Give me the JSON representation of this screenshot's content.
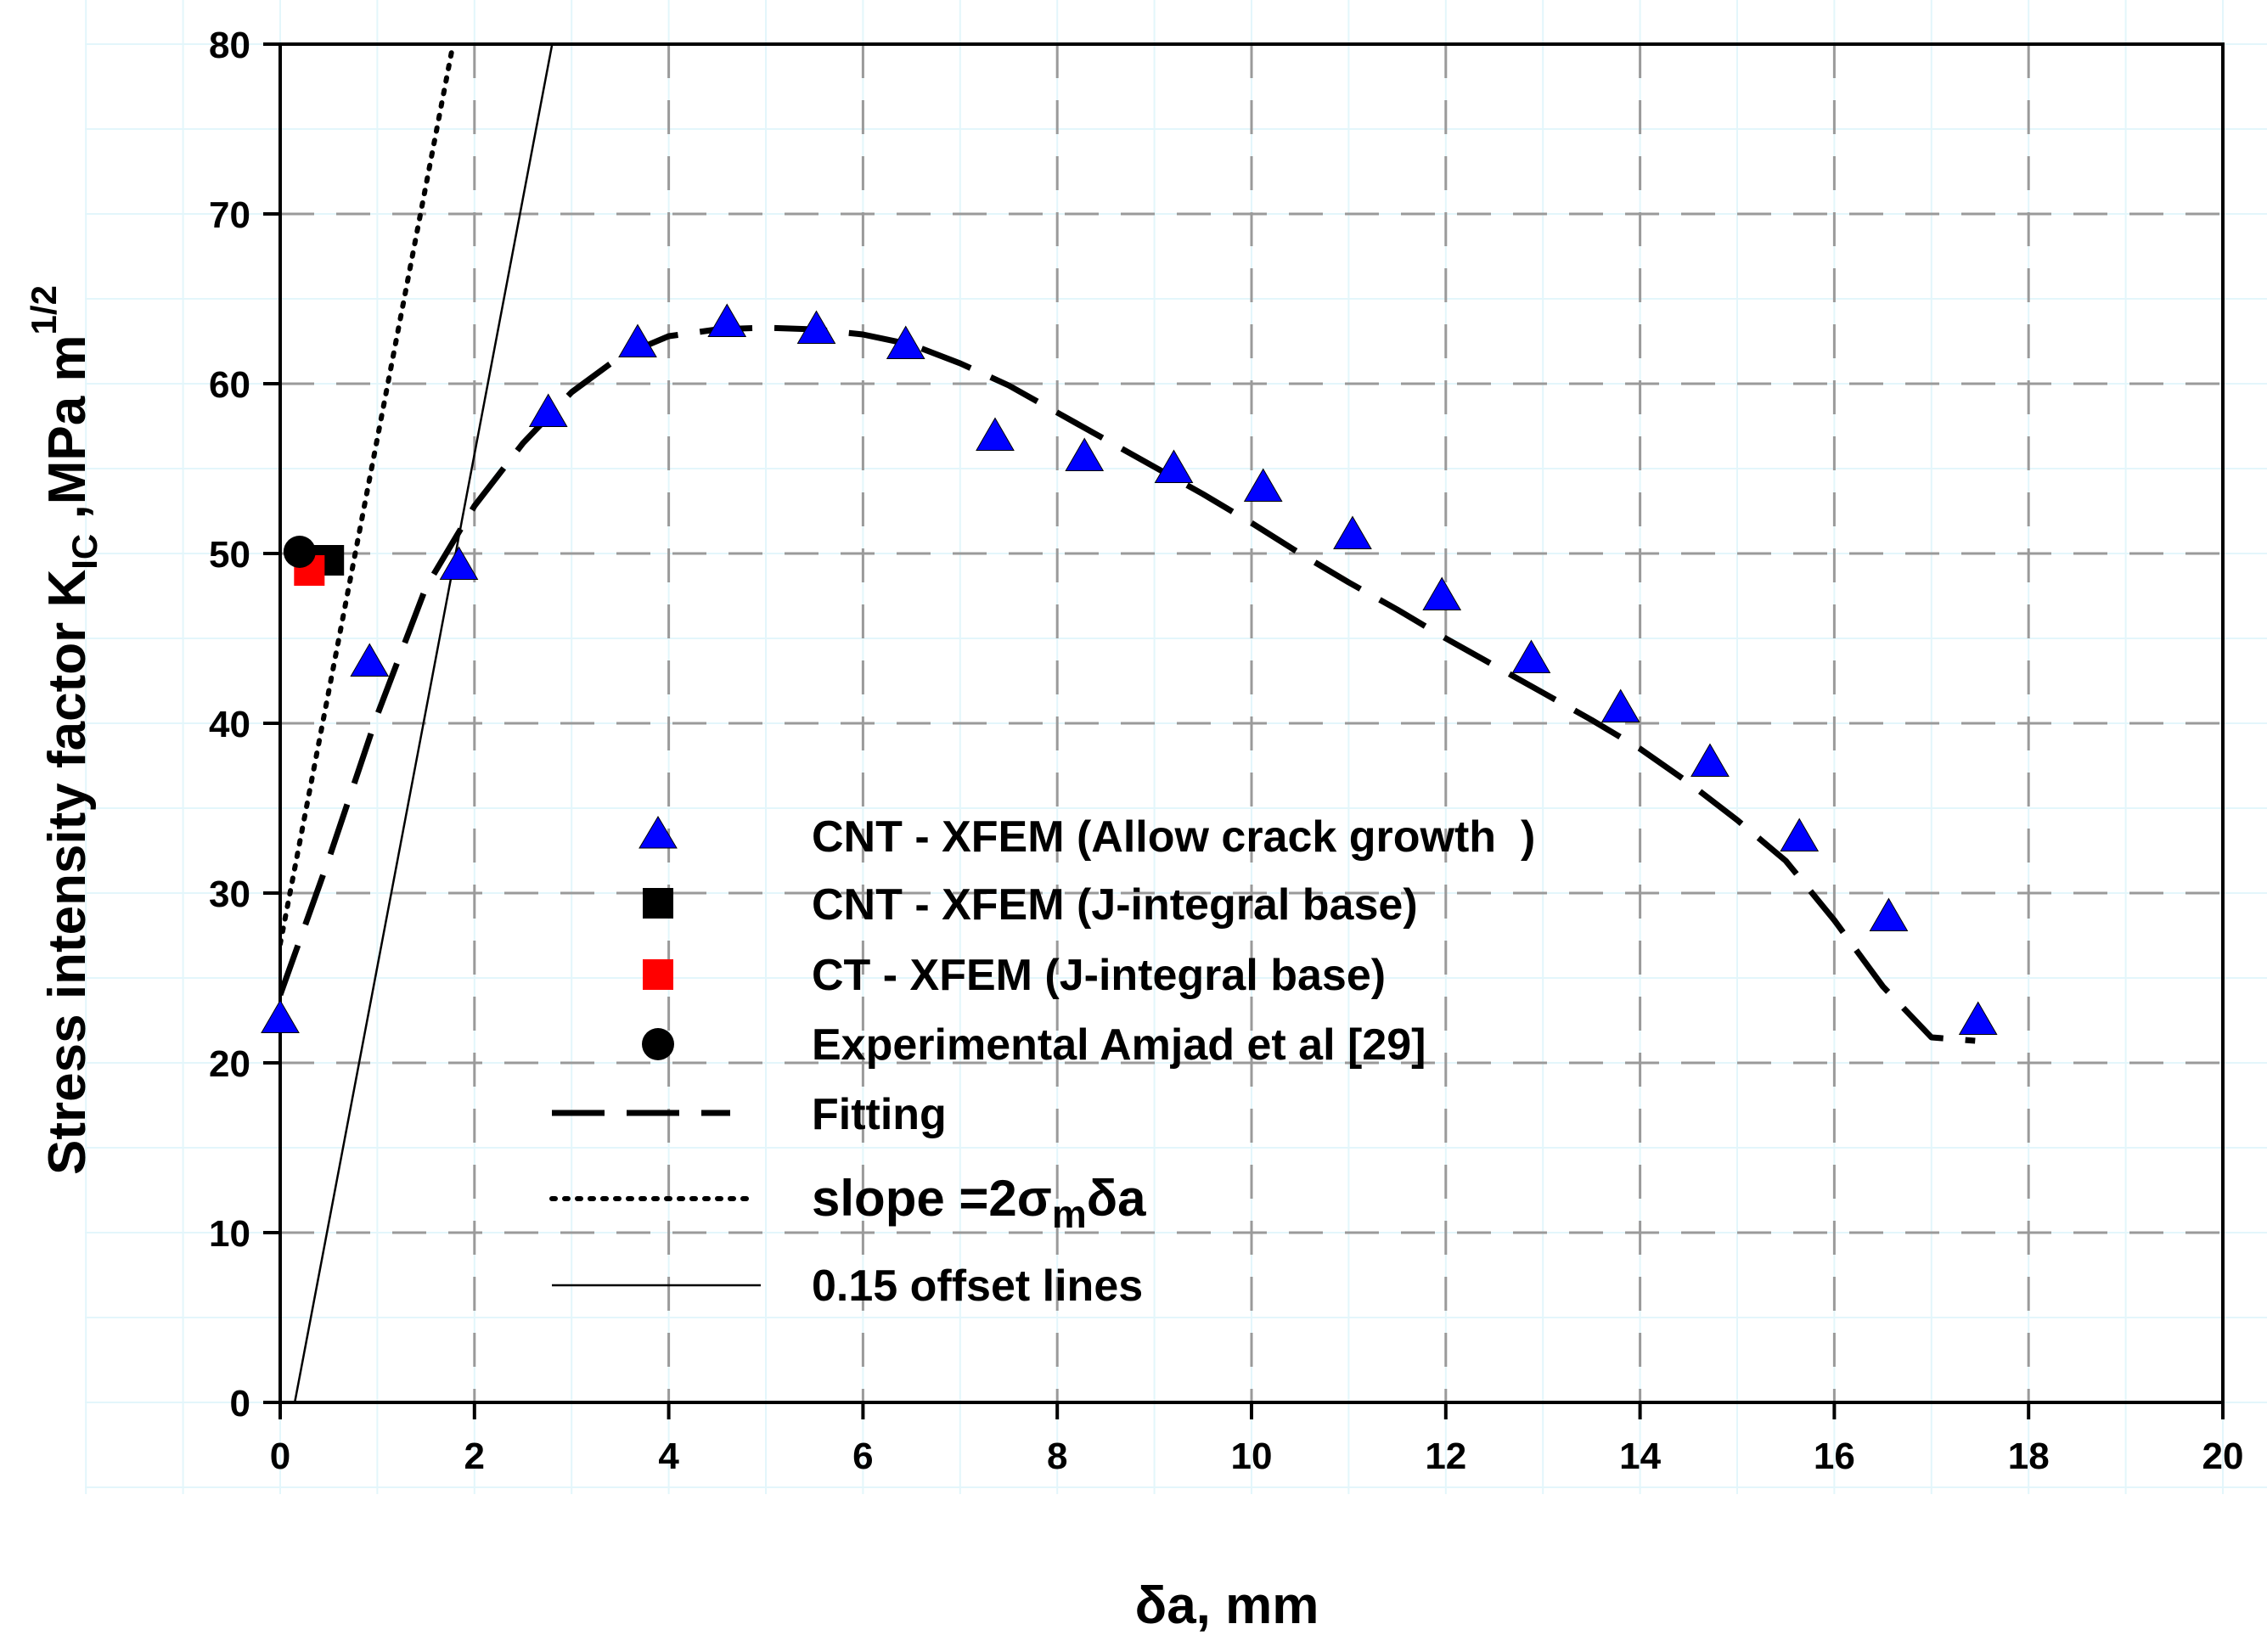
{
  "chart_data": {
    "type": "scatter",
    "xlabel": "δa, mm",
    "ylabel": "Stress intensity factor K",
    "ylabel_subscript": "IC",
    "ylabel_unit": " ,MPa m",
    "ylabel_superscript": "1/2",
    "xlim": [
      0,
      20
    ],
    "ylim": [
      0,
      80
    ],
    "x_ticks": [
      0,
      2,
      4,
      6,
      8,
      10,
      12,
      14,
      16,
      18,
      20
    ],
    "y_ticks": [
      0,
      10,
      20,
      30,
      40,
      50,
      60,
      70,
      80
    ],
    "x_tick_labels": [
      "0",
      "2",
      "4",
      "6",
      "8",
      "10",
      "12",
      "14",
      "16",
      "18",
      "20"
    ],
    "y_tick_labels": [
      "0",
      "10",
      "20",
      "30",
      "40",
      "50",
      "60",
      "70",
      "80"
    ],
    "grid": true,
    "legend_position": "lower-center",
    "series": [
      {
        "name": "CNT - XFEM (Allow crack growth  )",
        "type": "scatter",
        "marker": "triangle",
        "color": "#0000ff",
        "x": [
          0.0,
          0.92,
          1.84,
          2.76,
          3.68,
          4.6,
          5.52,
          6.44,
          7.36,
          8.28,
          9.2,
          10.12,
          11.04,
          11.96,
          12.88,
          13.8,
          14.72,
          15.64,
          16.56,
          17.48
        ],
        "y": [
          22.5,
          43.5,
          49.2,
          58.2,
          62.3,
          63.5,
          63.1,
          62.2,
          56.8,
          55.6,
          54.9,
          53.8,
          51.0,
          47.4,
          43.7,
          40.8,
          37.6,
          33.2,
          28.5,
          22.4
        ]
      },
      {
        "name": "CNT - XFEM (J-integral base)",
        "type": "scatter",
        "marker": "square",
        "color": "#000000",
        "x": [
          0.5
        ],
        "y": [
          49.6
        ]
      },
      {
        "name": "CT - XFEM (J-integral base)",
        "type": "scatter",
        "marker": "square",
        "color": "#ff0000",
        "x": [
          0.3
        ],
        "y": [
          49.0
        ]
      },
      {
        "name": "Experimental Amjad et al [29]",
        "type": "scatter",
        "marker": "circle",
        "color": "#000000",
        "x": [
          0.2
        ],
        "y": [
          50.1
        ]
      },
      {
        "name": "Fitting",
        "type": "line",
        "style": "dashed",
        "color": "#000000",
        "x": [
          0.0,
          0.5,
          1.0,
          1.5,
          2.0,
          2.5,
          3.0,
          3.5,
          4.0,
          4.5,
          5.0,
          5.5,
          6.0,
          6.5,
          7.0,
          7.5,
          8.0,
          8.5,
          9.0,
          9.5,
          10.0,
          10.5,
          11.0,
          11.5,
          12.0,
          12.5,
          13.0,
          13.5,
          14.0,
          14.5,
          15.0,
          15.5,
          16.0,
          16.5,
          17.0,
          17.45
        ],
        "y": [
          24.0,
          32.0,
          40.5,
          48.0,
          52.8,
          56.5,
          59.5,
          61.6,
          62.8,
          63.2,
          63.3,
          63.2,
          62.9,
          62.3,
          61.2,
          59.9,
          58.3,
          56.7,
          55.1,
          53.5,
          51.8,
          50.0,
          48.3,
          46.7,
          45.0,
          43.4,
          41.8,
          40.2,
          38.5,
          36.5,
          34.3,
          31.9,
          28.4,
          24.5,
          21.5,
          21.3
        ]
      },
      {
        "name": "slope =2σmδa",
        "legend_main": "slope =2σ",
        "legend_sub": "m",
        "legend_tail": "δa",
        "type": "line",
        "style": "dotted",
        "color": "#000000",
        "x": [
          0.0,
          1.78
        ],
        "y": [
          27.0,
          80.0
        ]
      },
      {
        "name": "0.15 offset lines",
        "type": "line",
        "style": "solid",
        "color": "#000000",
        "x": [
          0.15,
          2.8
        ],
        "y": [
          0.0,
          80.0
        ]
      }
    ]
  }
}
